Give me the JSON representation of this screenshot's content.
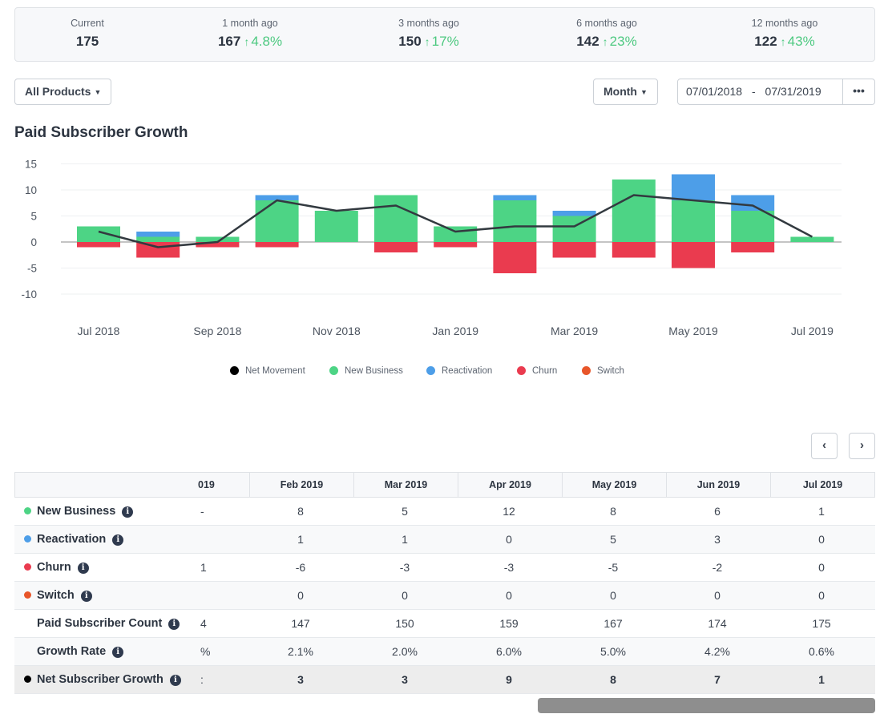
{
  "stats": [
    {
      "label": "Current",
      "value": "175",
      "change": ""
    },
    {
      "label": "1 month ago",
      "value": "167",
      "change": "4.8%"
    },
    {
      "label": "3 months ago",
      "value": "150",
      "change": "17%"
    },
    {
      "label": "6 months ago",
      "value": "142",
      "change": "23%"
    },
    {
      "label": "12 months ago",
      "value": "122",
      "change": "43%"
    }
  ],
  "controls": {
    "product_filter": "All Products",
    "interval": "Month",
    "date_start": "07/01/2018",
    "date_sep": "-",
    "date_end": "07/31/2019",
    "more": "•••"
  },
  "colors": {
    "net": "#000000",
    "new_business": "#4dd485",
    "reactivation": "#4d9ee8",
    "churn": "#ea3b4f",
    "switch": "#e8562a"
  },
  "chart_title": "Paid Subscriber Growth",
  "chart_data": {
    "type": "bar",
    "title": "Paid Subscriber Growth",
    "categories": [
      "Jul 2018",
      "Aug 2018",
      "Sep 2018",
      "Oct 2018",
      "Nov 2018",
      "Dec 2018",
      "Jan 2019",
      "Feb 2019",
      "Mar 2019",
      "Apr 2019",
      "May 2019",
      "Jun 2019",
      "Jul 2019"
    ],
    "x_tick_labels": [
      "Jul 2018",
      "Sep 2018",
      "Nov 2018",
      "Jan 2019",
      "Mar 2019",
      "May 2019",
      "Jul 2019"
    ],
    "y_ticks": [
      "15",
      "10",
      "5",
      "0",
      "-5",
      "-10"
    ],
    "ylim": [
      -10,
      15
    ],
    "series": [
      {
        "name": "New Business",
        "type": "bar",
        "values": [
          3,
          1,
          1,
          8,
          6,
          9,
          3,
          8,
          5,
          12,
          8,
          6,
          1
        ]
      },
      {
        "name": "Reactivation",
        "type": "bar",
        "values": [
          0,
          1,
          0,
          1,
          0,
          0,
          0,
          1,
          1,
          0,
          5,
          3,
          0
        ]
      },
      {
        "name": "Churn",
        "type": "bar",
        "values": [
          -1,
          -3,
          -1,
          -1,
          0,
          -2,
          -1,
          -6,
          -3,
          -3,
          -5,
          -2,
          0
        ]
      },
      {
        "name": "Switch",
        "type": "bar",
        "values": [
          0,
          0,
          0,
          0,
          0,
          0,
          0,
          0,
          0,
          0,
          0,
          0,
          0
        ]
      },
      {
        "name": "Net Movement",
        "type": "line",
        "values": [
          2,
          -1,
          0,
          8,
          6,
          7,
          2,
          3,
          3,
          9,
          8,
          7,
          1
        ]
      }
    ],
    "legend": [
      "Net Movement",
      "New Business",
      "Reactivation",
      "Churn",
      "Switch"
    ],
    "legend_position": "bottom-center"
  },
  "pager": {
    "prev": "‹",
    "next": "›"
  },
  "table": {
    "columns": [
      "Feb 2019",
      "Mar 2019",
      "Apr 2019",
      "May 2019",
      "Jun 2019",
      "Jul 2019"
    ],
    "partial_column": "019",
    "rows": [
      {
        "label": "New Business",
        "dot": "new_business",
        "partial": "-",
        "values": [
          "8",
          "5",
          "12",
          "8",
          "6",
          "1"
        ]
      },
      {
        "label": "Reactivation",
        "dot": "reactivation",
        "partial": "",
        "values": [
          "1",
          "1",
          "0",
          "5",
          "3",
          "0"
        ]
      },
      {
        "label": "Churn",
        "dot": "churn",
        "partial": "1",
        "values": [
          "-6",
          "-3",
          "-3",
          "-5",
          "-2",
          "0"
        ]
      },
      {
        "label": "Switch",
        "dot": "switch",
        "partial": "",
        "values": [
          "0",
          "0",
          "0",
          "0",
          "0",
          "0"
        ]
      },
      {
        "label": "Paid Subscriber Count",
        "dot": "",
        "partial": "4",
        "values": [
          "147",
          "150",
          "159",
          "167",
          "174",
          "175"
        ]
      },
      {
        "label": "Growth Rate",
        "dot": "",
        "partial": "%",
        "values": [
          "2.1%",
          "2.0%",
          "6.0%",
          "5.0%",
          "4.2%",
          "0.6%"
        ]
      },
      {
        "label": "Net Subscriber Growth",
        "dot": "net",
        "partial": ":",
        "values": [
          "3",
          "3",
          "9",
          "8",
          "7",
          "1"
        ]
      }
    ]
  }
}
